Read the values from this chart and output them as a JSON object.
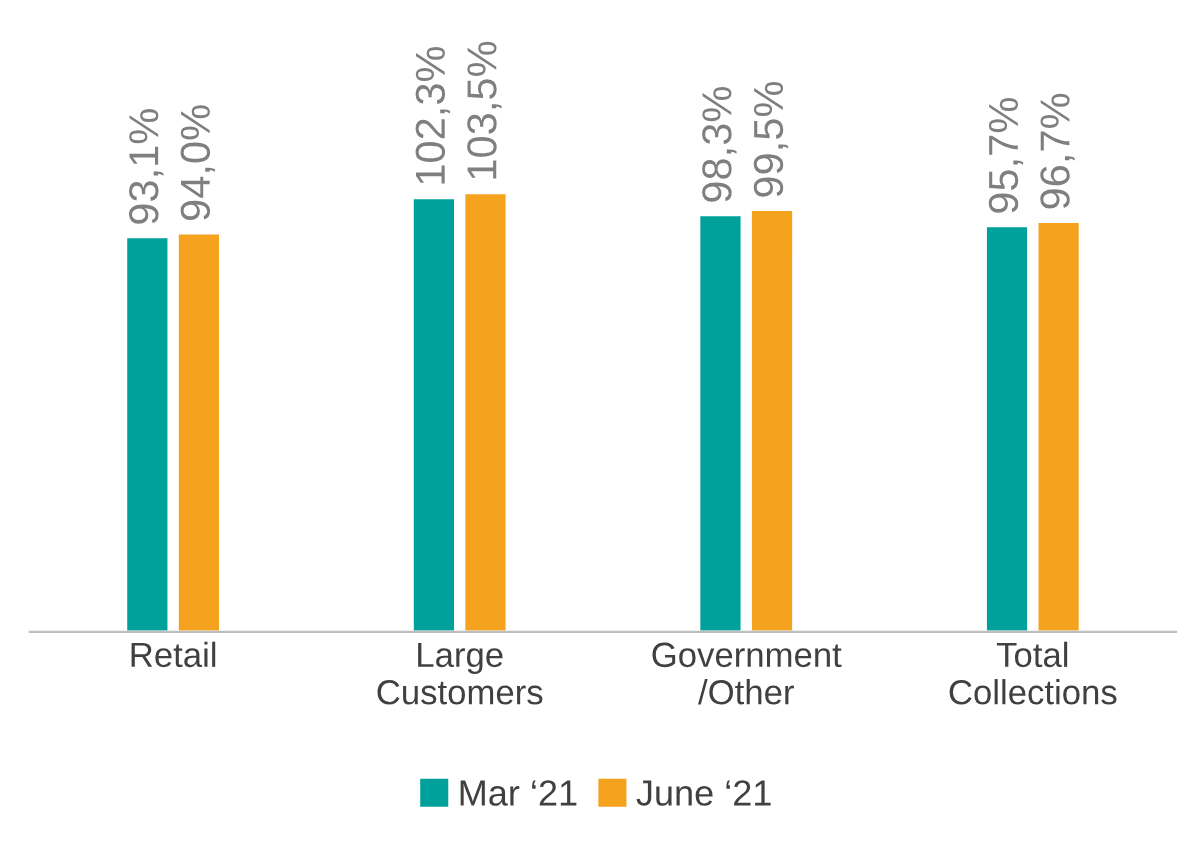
{
  "chart_data": {
    "type": "bar",
    "categories": [
      "Retail",
      "Large\nCustomers",
      "Government\n/Other",
      "Total\nCollections"
    ],
    "series": [
      {
        "name": "Mar ‘21",
        "color": "#00a19a",
        "values": [
          93.1,
          102.3,
          98.3,
          95.7
        ],
        "value_labels": [
          "93,1%",
          "102,3%",
          "98,3%",
          "95,7%"
        ]
      },
      {
        "name": "June ‘21",
        "color": "#f5a21e",
        "values": [
          94.0,
          103.5,
          99.5,
          96.7
        ],
        "value_labels": [
          "94,0%",
          "103,5%",
          "99,5%",
          "96,7%"
        ]
      }
    ],
    "tick_labels": "x",
    "grid": false,
    "legend": "bottom"
  }
}
